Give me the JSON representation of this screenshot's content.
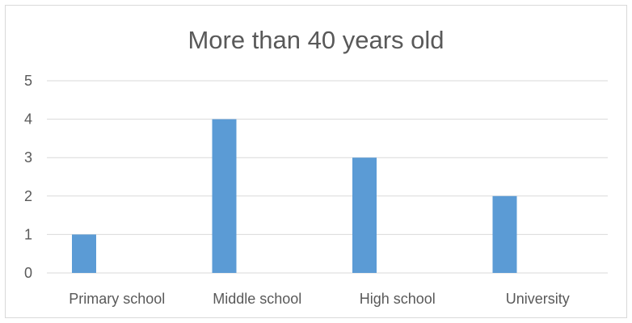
{
  "chart_data": {
    "type": "bar",
    "title": "More than 40 years old",
    "categories": [
      "Primary school",
      "Middle school",
      "High school",
      "University"
    ],
    "series": [
      {
        "values": [
          1,
          4,
          3,
          2
        ]
      }
    ],
    "ylim": [
      0,
      5
    ],
    "yticks": [
      "0",
      "1",
      "2",
      "3",
      "4",
      "5"
    ],
    "grid": true,
    "legend": "none",
    "colors": {
      "bar": "#5b9bd5",
      "grid": "#d9d9d9",
      "text": "#595959",
      "border": "#d9d9d9"
    }
  }
}
